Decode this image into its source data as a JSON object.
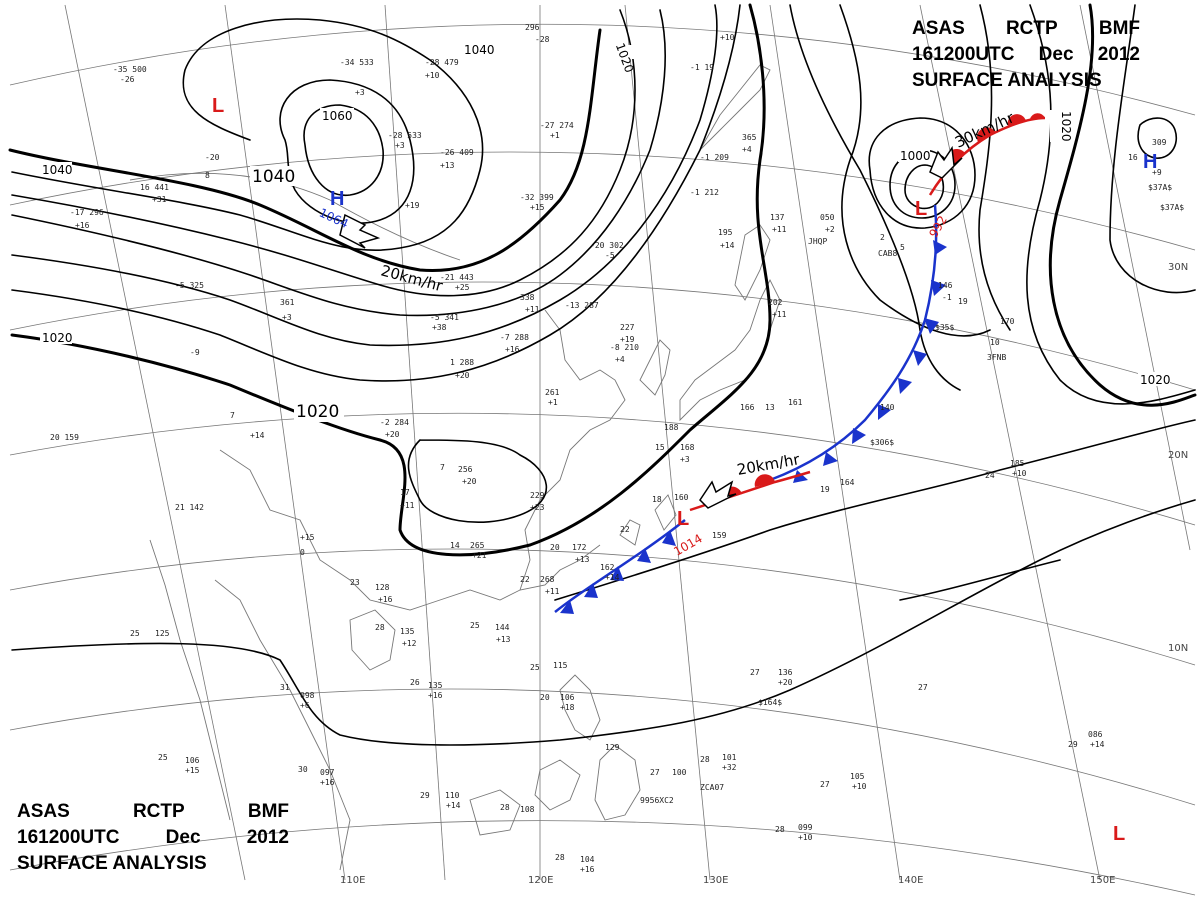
{
  "title_top": {
    "line1": [
      "ASAS",
      "RCTP",
      "BMF"
    ],
    "line2": [
      "161200UTC",
      "Dec",
      "2012"
    ],
    "line3": "SURFACE ANALYSIS"
  },
  "title_bottom": {
    "line1": [
      "ASAS",
      "RCTP",
      "BMF"
    ],
    "line2": [
      "161200UTC",
      "Dec",
      "2012"
    ],
    "line3": "SURFACE ANALYSIS"
  },
  "isobar_labels": [
    "1040",
    "1040",
    "1040",
    "1060",
    "1020",
    "1020",
    "1020",
    "1020",
    "1020",
    "1000"
  ],
  "pressure_systems": [
    {
      "type": "L",
      "value": ""
    },
    {
      "type": "H",
      "value": "1064"
    },
    {
      "type": "L",
      "value": "992"
    },
    {
      "type": "H",
      "value": ""
    },
    {
      "type": "L",
      "value": "1014"
    },
    {
      "type": "L",
      "value": ""
    }
  ],
  "movement_labels": [
    "20km/hr",
    "30km/hr",
    "20km/hr"
  ],
  "longitude_labels": [
    "110E",
    "120E",
    "130E",
    "140E",
    "150E"
  ],
  "latitude_labels": [
    "30N",
    "20N",
    "10N"
  ],
  "station_annotations": [
    "JHQP",
    "3FNB",
    "ZCA07",
    "9956XC2",
    "CAB8",
    "$164$",
    "$306$",
    "$37A$",
    "$35$"
  ],
  "colors": {
    "high": "#1a33cc",
    "low": "#d91a1a",
    "cold_front": "#1a33cc",
    "warm_front": "#d91a1a",
    "isobar": "#000000",
    "grid": "#777777"
  }
}
